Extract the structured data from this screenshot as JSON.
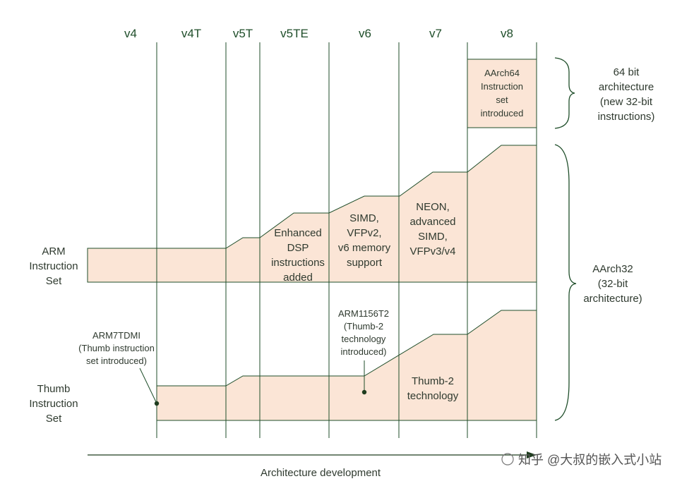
{
  "versions": [
    "v4",
    "v4T",
    "v5T",
    "v5TE",
    "v6",
    "v7",
    "v8"
  ],
  "arm_set": {
    "label": [
      "ARM",
      "Instruction",
      "Set"
    ]
  },
  "thumb_set": {
    "label": [
      "Thumb",
      "Instruction",
      "Set"
    ]
  },
  "aarch64_box": {
    "text": [
      "AArch64",
      "Instruction",
      "set",
      "introduced"
    ]
  },
  "right_64": {
    "text": [
      "64 bit",
      "architecture",
      "(new 32-bit",
      "instructions)"
    ]
  },
  "right_32": {
    "text": [
      "AArch32",
      "(32-bit",
      "architecture)"
    ]
  },
  "arm_features": {
    "v5te": [
      "Enhanced",
      "DSP",
      "instructions",
      "added"
    ],
    "v6": [
      "SIMD,",
      "VFPv2,",
      "v6 memory",
      "support"
    ],
    "v7": [
      "NEON,",
      "advanced",
      "SIMD,",
      "VFPv3/v4"
    ]
  },
  "thumb_features": {
    "v7": [
      "Thumb-2",
      "technology"
    ]
  },
  "annotations": {
    "arm7tdmi": [
      "ARM7TDMI",
      "(Thumb instruction",
      "set introduced)"
    ],
    "arm1156": [
      "ARM1156T2",
      "(Thumb-2",
      "technology",
      "introduced)"
    ]
  },
  "axis": {
    "label": "Architecture development"
  },
  "watermark": "知乎 @大叔的嵌入式小站",
  "colors": {
    "fill": "#fbe5d6",
    "line": "#1f4e2a"
  }
}
